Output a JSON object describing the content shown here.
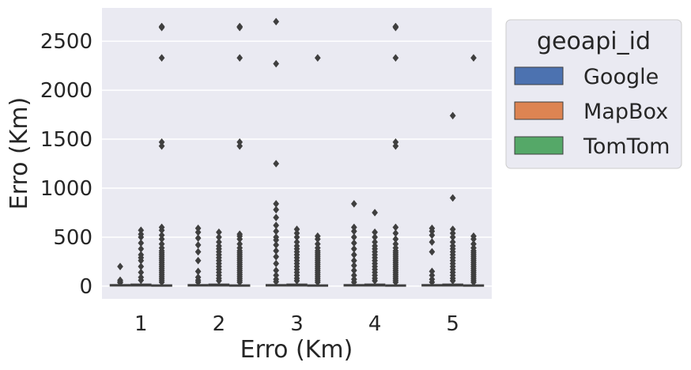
{
  "chart_data": {
    "type": "box",
    "xlabel": "Erro (Km)",
    "ylabel": "Erro (Km)",
    "ylim": [
      -130,
      2840
    ],
    "yticks": [
      0,
      500,
      1000,
      1500,
      2000,
      2500
    ],
    "categories": [
      "1",
      "2",
      "3",
      "4",
      "5"
    ],
    "grid": true,
    "legend": {
      "title": "geoapi_id",
      "placement": "outside-right"
    },
    "series": [
      {
        "name": "Google",
        "color": "#4c72b0",
        "boxes": [
          {
            "q1": 2,
            "median": 8,
            "q3": 15,
            "whisker_low": 0,
            "whisker_high": 30,
            "outliers": [
              35,
              45,
              60,
              200
            ]
          },
          {
            "q1": 2,
            "median": 8,
            "q3": 15,
            "whisker_low": 0,
            "whisker_high": 30,
            "outliers": [
              40,
              60,
              90,
              150,
              260,
              350,
              420,
              490,
              550,
              590
            ]
          },
          {
            "q1": 2,
            "median": 8,
            "q3": 15,
            "whisker_low": 0,
            "whisker_high": 30,
            "outliers": [
              45,
              70,
              110,
              160,
              230,
              300,
              360,
              420,
              470,
              500,
              560,
              620,
              700,
              780,
              840,
              1250,
              2270,
              2700
            ]
          },
          {
            "q1": 2,
            "median": 8,
            "q3": 15,
            "whisker_low": 0,
            "whisker_high": 30,
            "outliers": [
              40,
              70,
              110,
              160,
              210,
              260,
              320,
              380,
              440,
              500,
              560,
              600,
              840
            ]
          },
          {
            "q1": 2,
            "median": 8,
            "q3": 15,
            "whisker_low": 0,
            "whisker_high": 30,
            "outliers": [
              40,
              70,
              110,
              150,
              350,
              450,
              520,
              560,
              590
            ]
          }
        ]
      },
      {
        "name": "MapBox",
        "color": "#dd8452",
        "boxes": [
          {
            "q1": 2,
            "median": 10,
            "q3": 20,
            "whisker_low": 0,
            "whisker_high": 45,
            "outliers": [
              60,
              90,
              140,
              200,
              260,
              290,
              320,
              380,
              440,
              500,
              530,
              570
            ]
          },
          {
            "q1": 2,
            "median": 10,
            "q3": 20,
            "whisker_low": 0,
            "whisker_high": 45,
            "outliers": [
              55,
              80,
              110,
              140,
              170,
              200,
              230,
              260,
              290,
              320,
              350,
              380,
              410,
              450,
              500,
              550
            ]
          },
          {
            "q1": 2,
            "median": 10,
            "q3": 20,
            "whisker_low": 0,
            "whisker_high": 45,
            "outliers": [
              55,
              80,
              110,
              140,
              170,
              200,
              230,
              260,
              290,
              320,
              350,
              380,
              410,
              450,
              500,
              540,
              580
            ]
          },
          {
            "q1": 2,
            "median": 10,
            "q3": 20,
            "whisker_low": 0,
            "whisker_high": 45,
            "outliers": [
              55,
              80,
              110,
              140,
              170,
              200,
              230,
              260,
              290,
              320,
              350,
              380,
              410,
              450,
              500,
              550,
              750
            ]
          },
          {
            "q1": 2,
            "median": 10,
            "q3": 20,
            "whisker_low": 0,
            "whisker_high": 45,
            "outliers": [
              55,
              80,
              110,
              140,
              170,
              200,
              230,
              260,
              290,
              320,
              350,
              380,
              410,
              450,
              500,
              540,
              580,
              900,
              1740
            ]
          }
        ]
      },
      {
        "name": "TomTom",
        "color": "#55a868",
        "boxes": [
          {
            "q1": 1,
            "median": 5,
            "q3": 12,
            "whisker_low": 0,
            "whisker_high": 28,
            "outliers": [
              40,
              60,
              80,
              100,
              120,
              140,
              160,
              180,
              200,
              220,
              240,
              260,
              280,
              300,
              320,
              340,
              360,
              390,
              430,
              480,
              520,
              570,
              600,
              1430,
              1470,
              2330,
              2640,
              2650
            ]
          },
          {
            "q1": 1,
            "median": 5,
            "q3": 12,
            "whisker_low": 0,
            "whisker_high": 28,
            "outliers": [
              40,
              60,
              80,
              100,
              120,
              140,
              160,
              180,
              200,
              220,
              240,
              260,
              280,
              300,
              320,
              340,
              360,
              390,
              430,
              480,
              510,
              530,
              1430,
              1470,
              2330,
              2640,
              2650
            ]
          },
          {
            "q1": 1,
            "median": 5,
            "q3": 12,
            "whisker_low": 0,
            "whisker_high": 28,
            "outliers": [
              40,
              60,
              80,
              100,
              120,
              140,
              160,
              180,
              200,
              220,
              240,
              260,
              280,
              300,
              320,
              340,
              360,
              390,
              430,
              480,
              510,
              2330
            ]
          },
          {
            "q1": 1,
            "median": 5,
            "q3": 12,
            "whisker_low": 0,
            "whisker_high": 28,
            "outliers": [
              40,
              60,
              80,
              100,
              120,
              140,
              160,
              180,
              200,
              220,
              240,
              260,
              280,
              300,
              320,
              340,
              360,
              390,
              430,
              480,
              540,
              600,
              1430,
              1470,
              2330,
              2640,
              2650
            ]
          },
          {
            "q1": 1,
            "median": 5,
            "q3": 12,
            "whisker_low": 0,
            "whisker_high": 28,
            "outliers": [
              40,
              60,
              80,
              100,
              120,
              140,
              160,
              180,
              200,
              220,
              240,
              260,
              280,
              300,
              320,
              340,
              360,
              390,
              430,
              480,
              510,
              2330
            ]
          }
        ]
      }
    ]
  }
}
